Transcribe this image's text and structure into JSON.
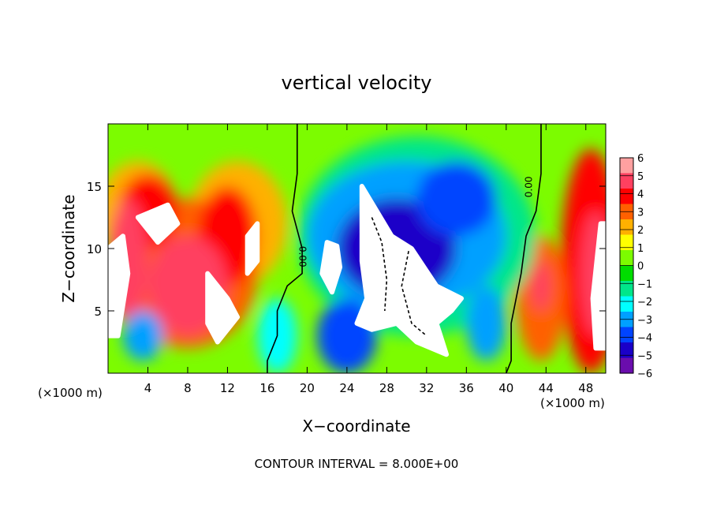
{
  "chart_data": {
    "type": "heatmap",
    "title": "vertical velocity",
    "xlabel": "X−coordinate",
    "ylabel": "Z−coordinate",
    "x_unit_label_left": "(×1000 m)",
    "x_unit_label_right": "(×1000 m)",
    "xlim": [
      0,
      50
    ],
    "ylim": [
      0,
      20
    ],
    "x_ticks": [
      4,
      8,
      12,
      16,
      20,
      24,
      28,
      32,
      36,
      40,
      44,
      48
    ],
    "y_ticks": [
      5,
      10,
      15
    ],
    "colorbar": {
      "ticks": [
        6,
        5,
        4,
        3,
        2,
        1,
        0,
        -1,
        -2,
        -3,
        -4,
        -5,
        -6
      ],
      "tick_labels": [
        "6",
        "5",
        "4",
        "3",
        "2",
        "1",
        "0",
        "−1",
        "−2",
        "−3",
        "−4",
        "−5",
        "−6"
      ],
      "range": [
        -6,
        6
      ],
      "colors": [
        "#6a0dad",
        "#1a00c8",
        "#0044ff",
        "#00a0ff",
        "#00ffff",
        "#00e68a",
        "#00dd00",
        "#7cfc00",
        "#ffff00",
        "#ffb000",
        "#ff6000",
        "#ff0000",
        "#ff4060",
        "#ffa0a0"
      ],
      "saturation_color": "#ffffff"
    },
    "contour_labels": [
      "0.00",
      "0.00"
    ],
    "contour_zero_color": "#000000",
    "footer": "CONTOUR INTERVAL = 8.000E+00"
  }
}
